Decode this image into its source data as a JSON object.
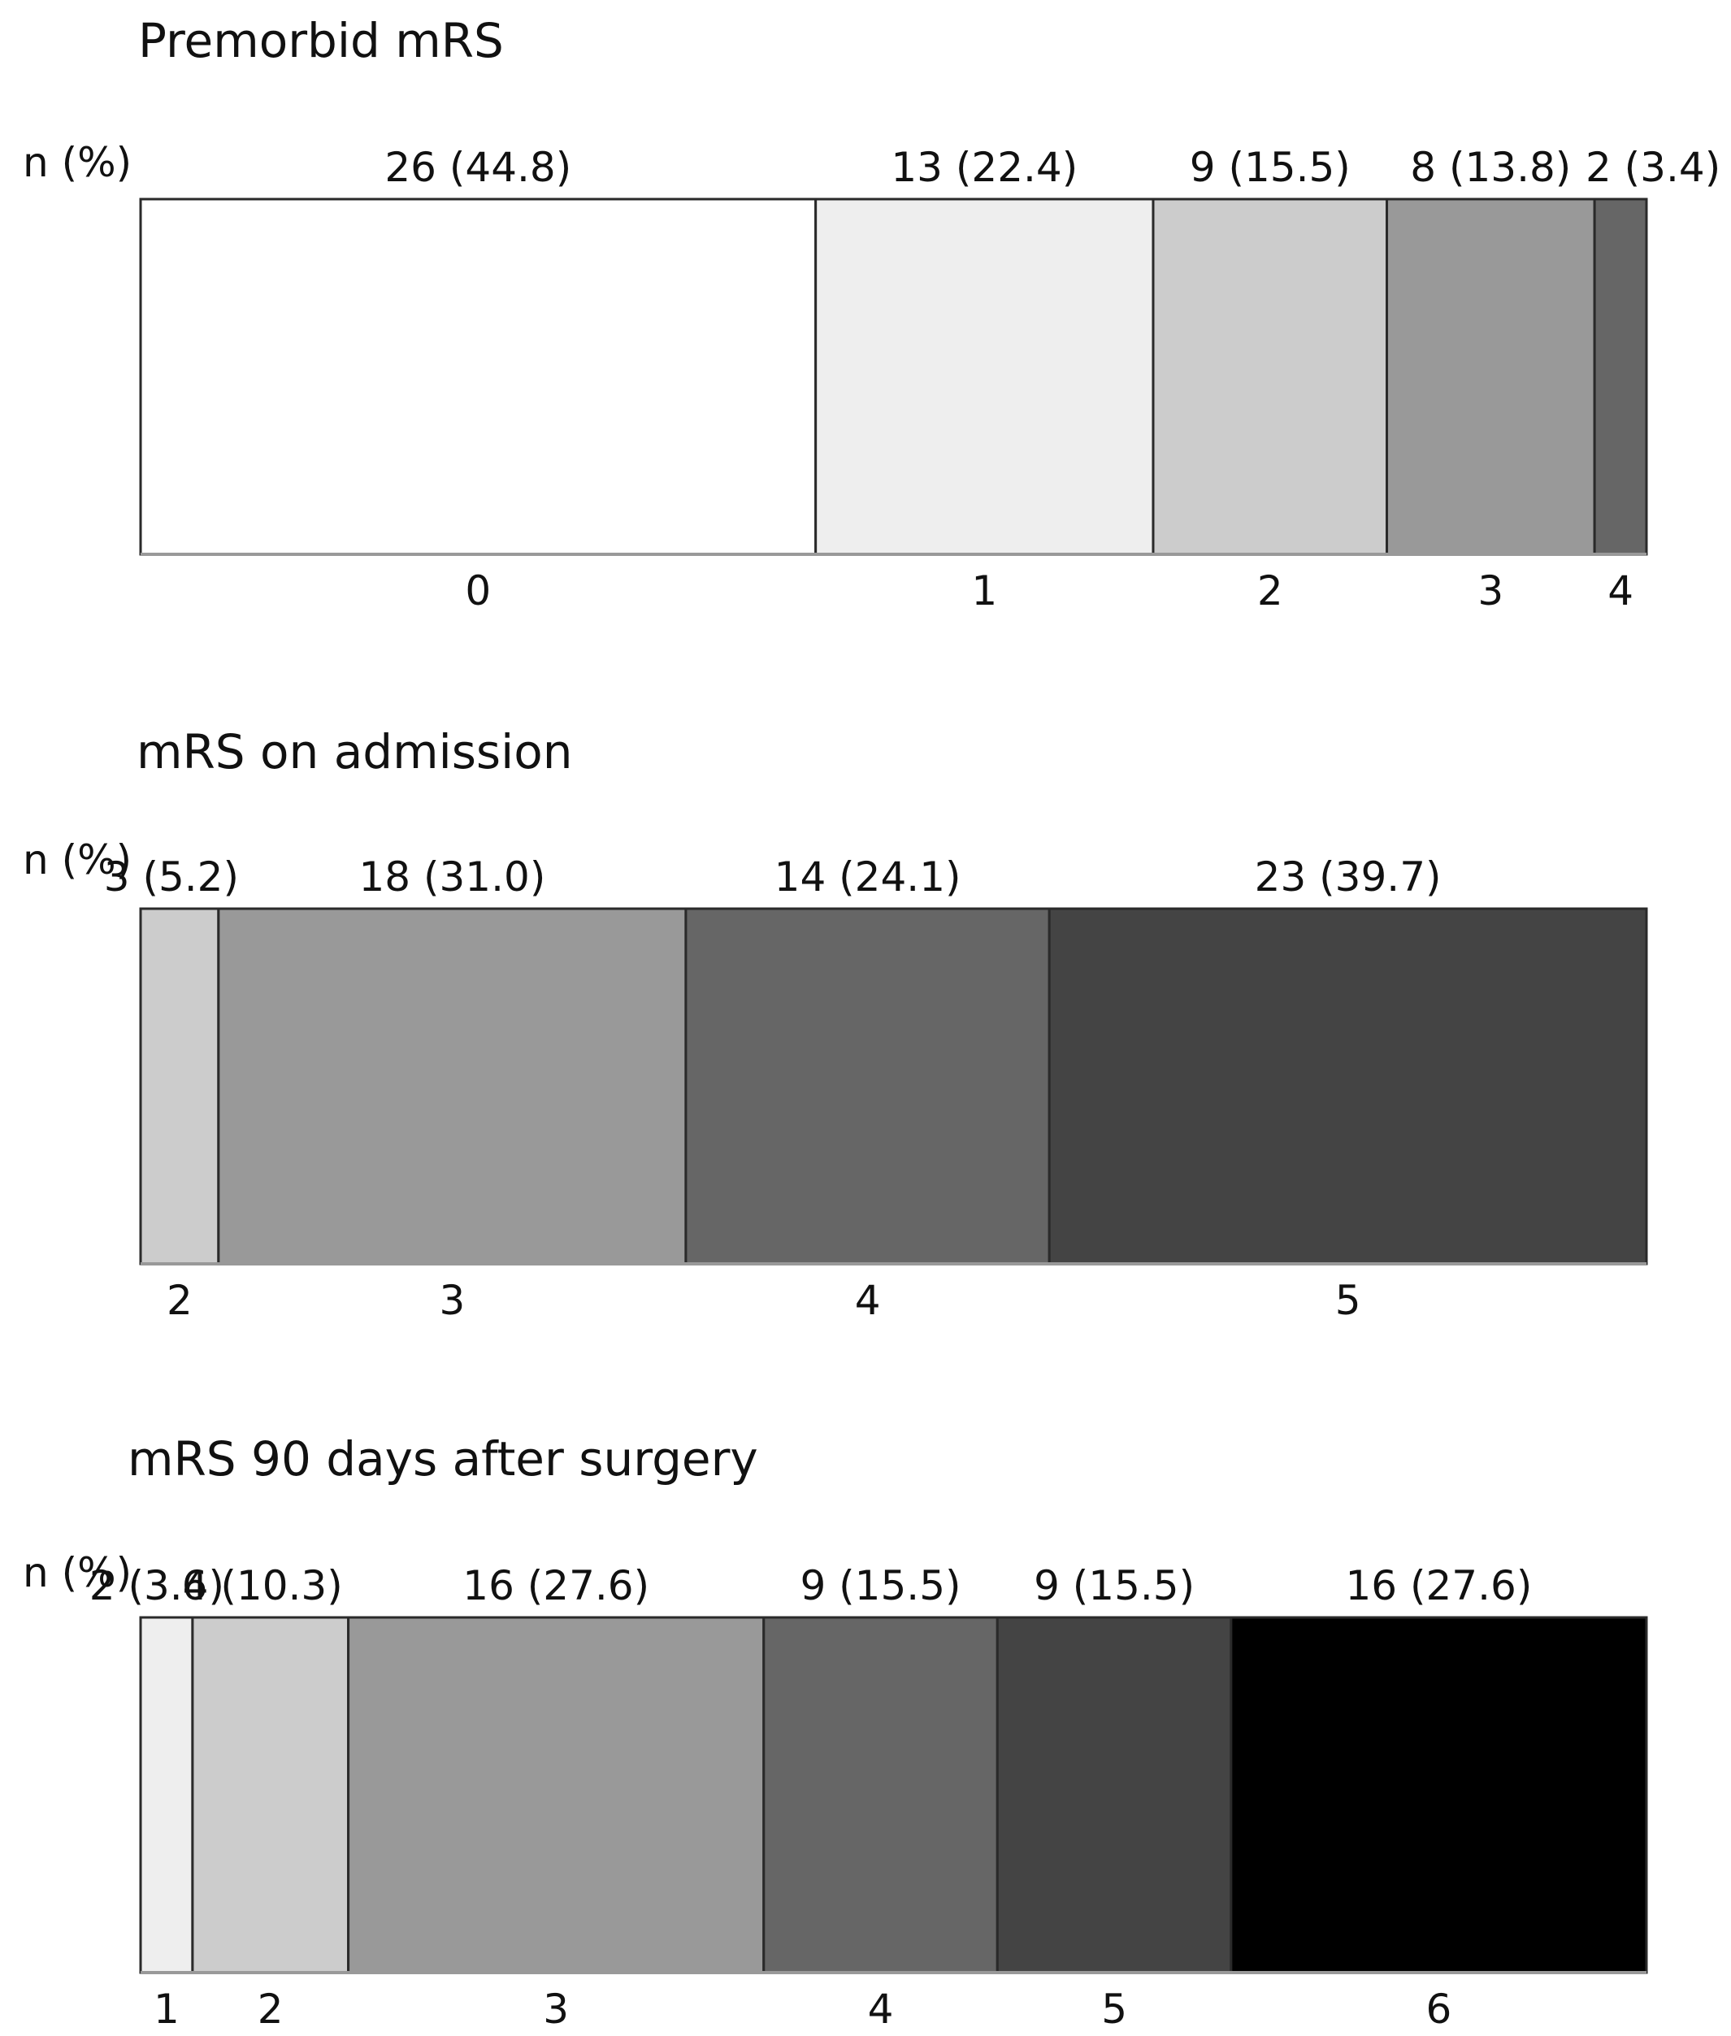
{
  "chart_data": [
    {
      "type": "bar",
      "orientation": "horizontal-stacked",
      "title": "Premorbid mRS",
      "value_header": "n (%)",
      "segments": [
        {
          "category": "0",
          "n": 26,
          "label": "26 (44.8)",
          "color": "#ffffff"
        },
        {
          "category": "1",
          "n": 13,
          "label": "13 (22.4)",
          "color": "#eeeeee"
        },
        {
          "category": "2",
          "n": 9,
          "label": "9 (15.5)",
          "color": "#cccccc"
        },
        {
          "category": "3",
          "n": 8,
          "label": "8 (13.8)",
          "color": "#999999"
        },
        {
          "category": "4",
          "n": 2,
          "label": "2 (3.4)",
          "color": "#666666"
        }
      ]
    },
    {
      "type": "bar",
      "orientation": "horizontal-stacked",
      "title": "mRS on admission",
      "value_header": "n (%)",
      "segments": [
        {
          "category": "2",
          "n": 3,
          "label": "3 (5.2)",
          "color": "#cccccc"
        },
        {
          "category": "3",
          "n": 18,
          "label": "18 (31.0)",
          "color": "#999999"
        },
        {
          "category": "4",
          "n": 14,
          "label": "14 (24.1)",
          "color": "#666666"
        },
        {
          "category": "5",
          "n": 23,
          "label": "23 (39.7)",
          "color": "#444444"
        }
      ]
    },
    {
      "type": "bar",
      "orientation": "horizontal-stacked",
      "title": "mRS 90 days after surgery",
      "value_header": "n (%)",
      "segments": [
        {
          "category": "1",
          "n": 2,
          "label": "2 (3.4)",
          "color": "#eeeeee"
        },
        {
          "category": "2",
          "n": 6,
          "label": "6 (10.3)",
          "color": "#cccccc"
        },
        {
          "category": "3",
          "n": 16,
          "label": "16 (27.6)",
          "color": "#999999"
        },
        {
          "category": "4",
          "n": 9,
          "label": "9 (15.5)",
          "color": "#666666"
        },
        {
          "category": "5",
          "n": 9,
          "label": "9 (15.5)",
          "color": "#444444"
        },
        {
          "category": "6",
          "n": 16,
          "label": "16 (27.6)",
          "color": "#000000"
        }
      ]
    }
  ]
}
